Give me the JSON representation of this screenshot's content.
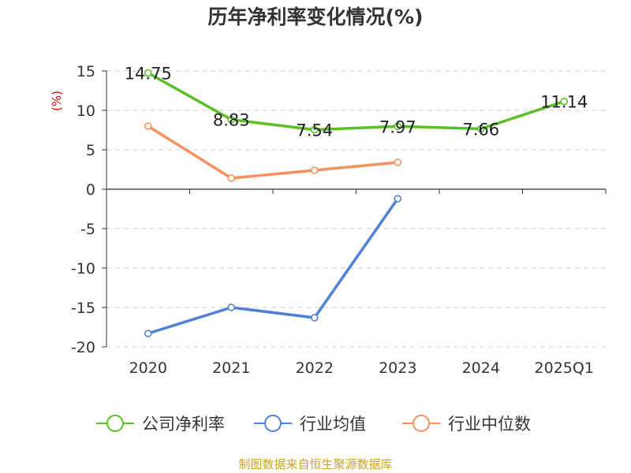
{
  "chart_data": {
    "type": "line",
    "title": "历年净利率变化情况(%)",
    "ylabel": "(%)",
    "categories": [
      "2020",
      "2021",
      "2022",
      "2023",
      "2024",
      "2025Q1"
    ],
    "ylim": [
      -20,
      15
    ],
    "yticks": [
      15,
      10,
      5,
      0,
      -5,
      -10,
      -15,
      -20
    ],
    "grid": true,
    "legend_position": "bottom",
    "series": [
      {
        "name": "公司净利率",
        "color": "#5cbf26",
        "values": [
          14.75,
          8.83,
          7.54,
          7.97,
          7.66,
          11.14
        ],
        "labels": [
          "14.75",
          "8.83",
          "7.54",
          "7.97",
          "7.66",
          "11.14"
        ]
      },
      {
        "name": "行业均值",
        "color": "#4f7fd9",
        "values": [
          -18.3,
          -15.0,
          -16.3,
          -1.2,
          null,
          null
        ]
      },
      {
        "name": "行业中位数",
        "color": "#f5915e",
        "values": [
          8.0,
          1.4,
          2.4,
          3.4,
          null,
          null
        ]
      }
    ]
  },
  "footer": {
    "source": "制图数据来自恒生聚源数据库"
  }
}
